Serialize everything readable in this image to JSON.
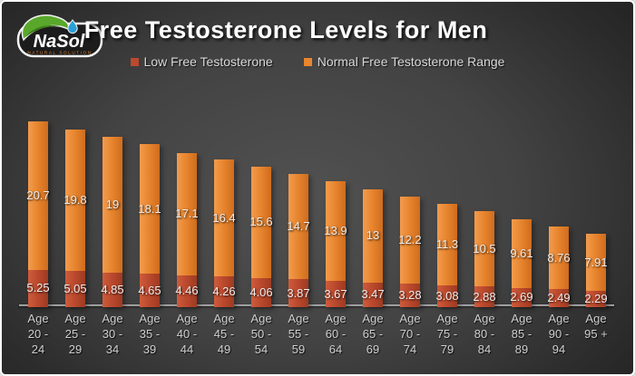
{
  "header": {
    "title": "Free Testosterone Levels for Men",
    "logo": {
      "name": "NaSol",
      "tagline": "NATURAL SOLUTION"
    }
  },
  "legend": {
    "items": [
      {
        "label": "Low Free Testosterone",
        "color": "#bc492d"
      },
      {
        "label": "Normal Free Testosterone Range",
        "color": "#e8862f"
      }
    ]
  },
  "chart_data": {
    "type": "bar",
    "stacked": true,
    "title": "Free Testosterone Levels for Men",
    "xlabel": "",
    "ylabel": "",
    "gridlines": false,
    "legend_position": "top",
    "categories": [
      "Age\n20 -\n24",
      "Age\n25 -\n29",
      "Age\n30 -\n34",
      "Age\n35 -\n39",
      "Age\n40 -\n44",
      "Age\n45 -\n49",
      "Age\n50 -\n54",
      "Age\n55 -\n59",
      "Age\n60 -\n64",
      "Age\n65 -\n69",
      "Age\n70 -\n74",
      "Age\n75 -\n79",
      "Age\n80 -\n84",
      "Age\n85 -\n89",
      "Age\n90 -\n94",
      "Age\n95 +"
    ],
    "series": [
      {
        "name": "Low Free Testosterone",
        "color": "#bc492d",
        "values": [
          5.25,
          5.05,
          4.85,
          4.65,
          4.46,
          4.26,
          4.06,
          3.87,
          3.67,
          3.47,
          3.28,
          3.08,
          2.88,
          2.69,
          2.49,
          2.29
        ],
        "labels": [
          "5.25",
          "5.05",
          "4.85",
          "4.65",
          "4.46",
          "4.26",
          "4.06",
          "3.87",
          "3.67",
          "3.47",
          "3.28",
          "3.08",
          "2.88",
          "2.69",
          "2.49",
          "2.29"
        ]
      },
      {
        "name": "Normal Free Testosterone Range",
        "color": "#e8862f",
        "values": [
          20.7,
          19.8,
          19,
          18.1,
          17.1,
          16.4,
          15.6,
          14.7,
          13.9,
          13,
          12.2,
          11.3,
          10.5,
          9.61,
          8.76,
          7.91
        ],
        "labels": [
          "20.7",
          "19.8",
          "19",
          "18.1",
          "17.1",
          "16.4",
          "15.6",
          "14.7",
          "13.9",
          "13",
          "12.2",
          "11.3",
          "10.5",
          "9.61",
          "8.76",
          "7.91"
        ]
      }
    ]
  }
}
